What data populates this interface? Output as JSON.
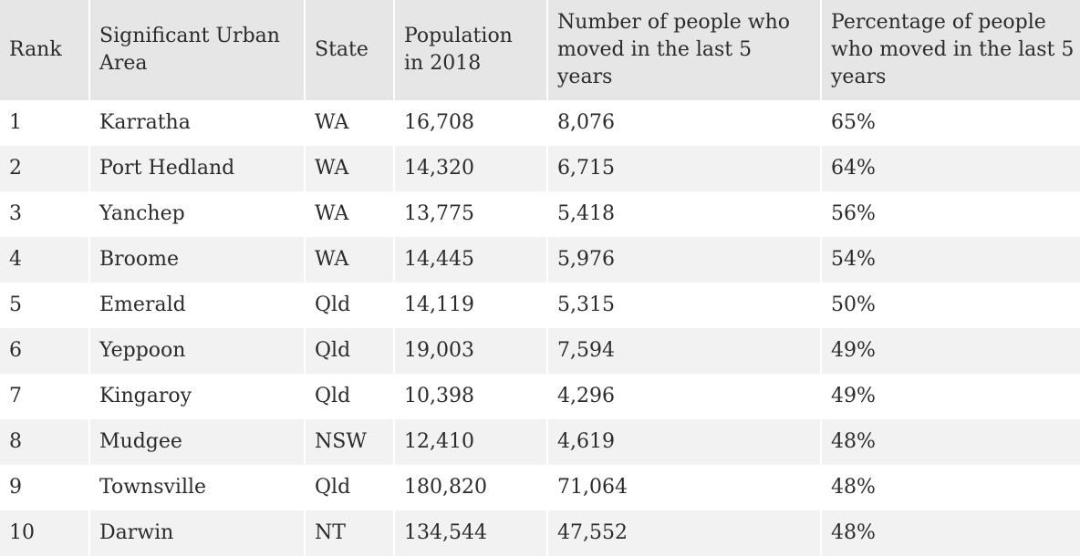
{
  "chart_data": {
    "type": "table",
    "columns": [
      "Rank",
      "Significant Urban Area",
      "State",
      "Population in 2018",
      "Number of people who moved in the last 5 years",
      "Percentage of people who moved in the last 5 years"
    ],
    "rows": [
      [
        "1",
        "Karratha",
        "WA",
        "16,708",
        "8,076",
        "65%"
      ],
      [
        "2",
        "Port Hedland",
        "WA",
        "14,320",
        "6,715",
        "64%"
      ],
      [
        "3",
        "Yanchep",
        "WA",
        "13,775",
        "5,418",
        "56%"
      ],
      [
        "4",
        "Broome",
        "WA",
        "14,445",
        "5,976",
        "54%"
      ],
      [
        "5",
        "Emerald",
        "Qld",
        "14,119",
        "5,315",
        "50%"
      ],
      [
        "6",
        "Yeppoon",
        "Qld",
        "19,003",
        "7,594",
        "49%"
      ],
      [
        "7",
        "Kingaroy",
        "Qld",
        "10,398",
        "4,296",
        "49%"
      ],
      [
        "8",
        "Mudgee",
        "NSW",
        "12,410",
        "4,619",
        "48%"
      ],
      [
        "9",
        "Townsville",
        "Qld",
        "180,820",
        "71,064",
        "48%"
      ],
      [
        "10",
        "Darwin",
        "NT",
        "134,544",
        "47,552",
        "48%"
      ]
    ]
  }
}
